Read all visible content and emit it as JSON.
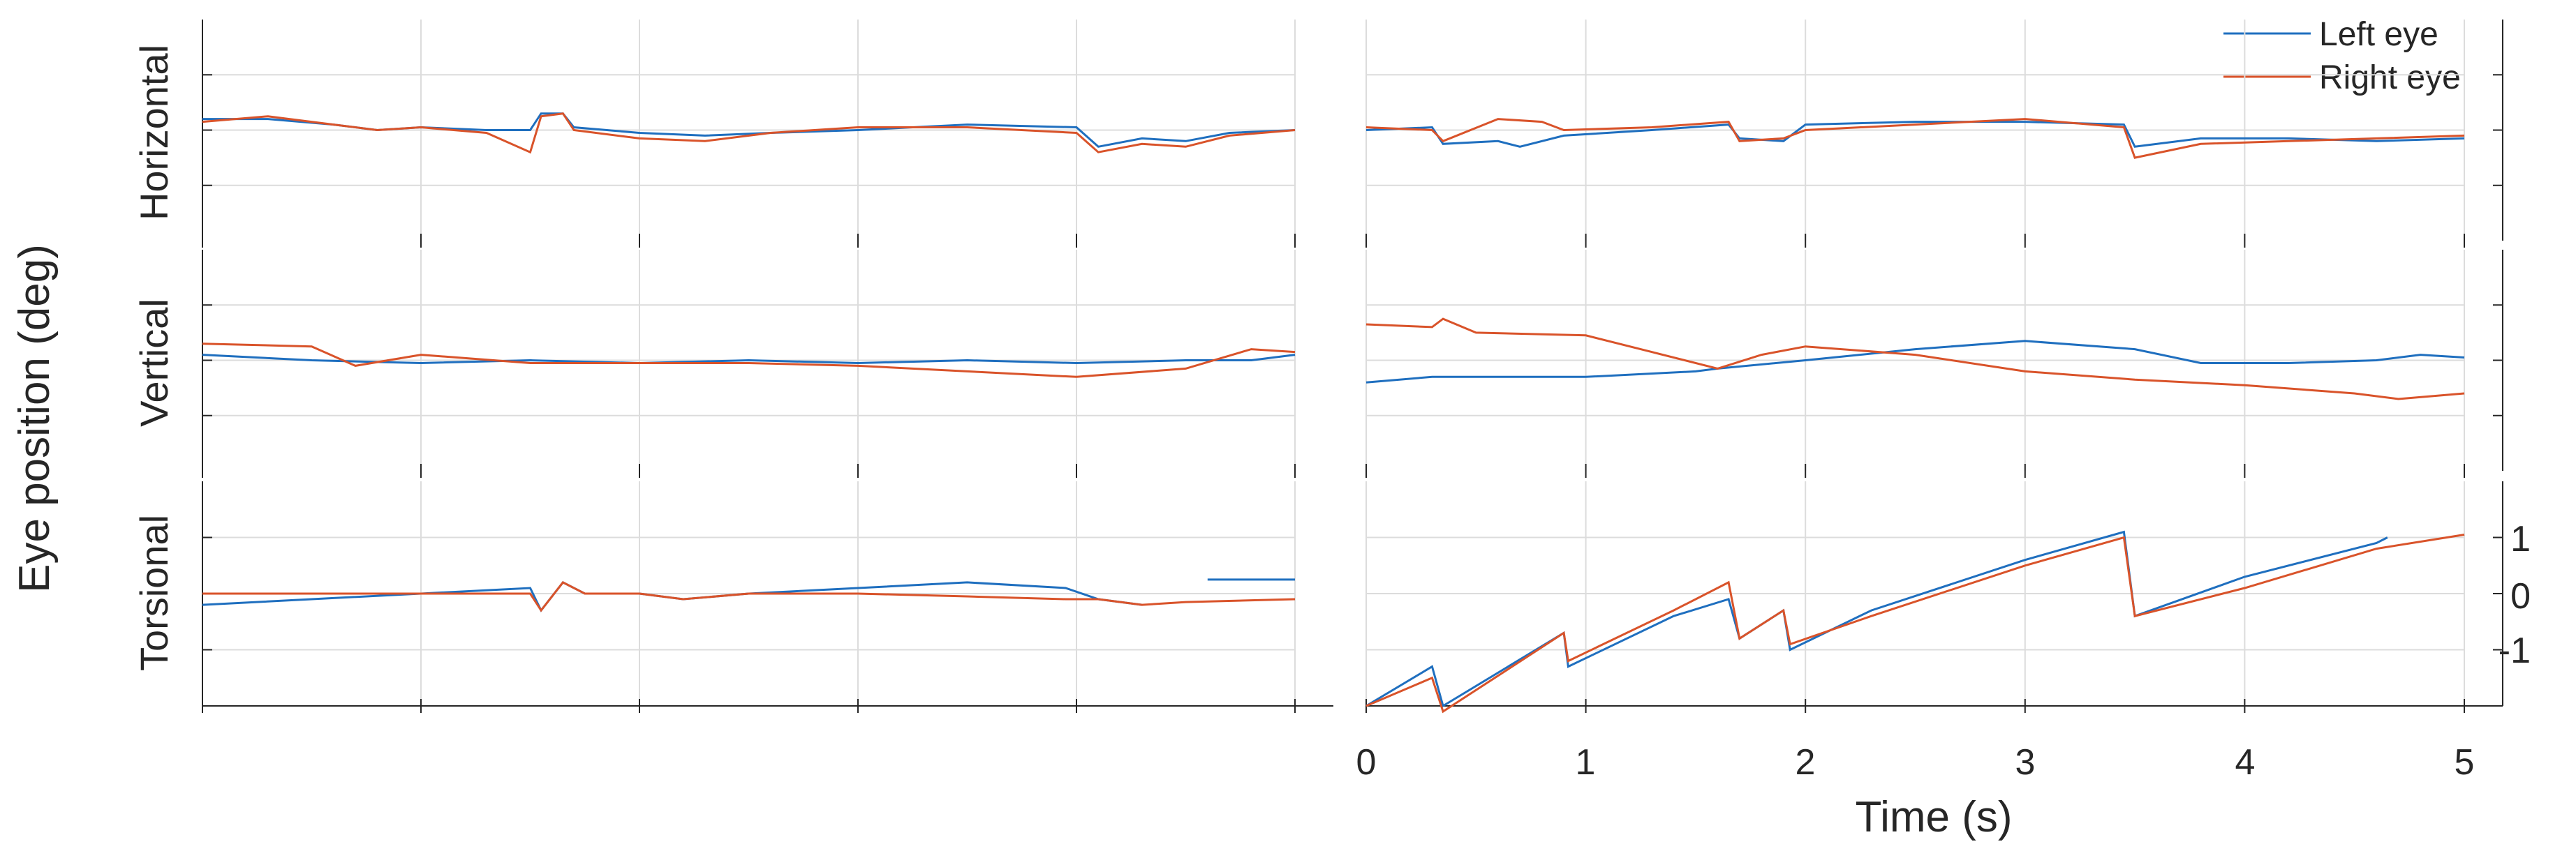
{
  "chart_data": {
    "type": "line",
    "ylabel": "Eye position (deg)",
    "xlabel": "Time (s)",
    "row_labels": [
      "Horizontal",
      "Vertical",
      "Torsional"
    ],
    "legend": [
      "Left eye",
      "Right eye"
    ],
    "legend_position": "top-right",
    "colors": {
      "left": "#1f6fbf",
      "right": "#d9532a",
      "grid": "#dcdcdc",
      "axis": "#262626"
    },
    "grid": true,
    "xlim": [
      0,
      5
    ],
    "xticks": [
      0,
      1,
      2,
      3,
      4,
      5
    ],
    "ylim": [
      -2,
      2
    ],
    "yticks_right_bottom": [
      1,
      0,
      -1
    ],
    "panels": {
      "left_horizontal": {
        "left": [
          [
            0,
            0.2
          ],
          [
            0.3,
            0.2
          ],
          [
            0.6,
            0.1
          ],
          [
            0.8,
            0
          ],
          [
            1.0,
            0.05
          ],
          [
            1.3,
            0
          ],
          [
            1.5,
            0
          ],
          [
            1.55,
            0.3
          ],
          [
            1.65,
            0.3
          ],
          [
            1.7,
            0.05
          ],
          [
            2.0,
            -0.05
          ],
          [
            2.3,
            -0.1
          ],
          [
            2.6,
            -0.05
          ],
          [
            3.0,
            0
          ],
          [
            3.5,
            0.1
          ],
          [
            4.0,
            0.05
          ],
          [
            4.1,
            -0.3
          ],
          [
            4.3,
            -0.15
          ],
          [
            4.5,
            -0.2
          ],
          [
            4.7,
            -0.05
          ],
          [
            5.0,
            0
          ]
        ],
        "right": [
          [
            0,
            0.15
          ],
          [
            0.3,
            0.25
          ],
          [
            0.6,
            0.1
          ],
          [
            0.8,
            0
          ],
          [
            1.0,
            0.05
          ],
          [
            1.3,
            -0.05
          ],
          [
            1.5,
            -0.4
          ],
          [
            1.55,
            0.25
          ],
          [
            1.65,
            0.3
          ],
          [
            1.7,
            0
          ],
          [
            2.0,
            -0.15
          ],
          [
            2.3,
            -0.2
          ],
          [
            2.6,
            -0.05
          ],
          [
            3.0,
            0.05
          ],
          [
            3.5,
            0.05
          ],
          [
            4.0,
            -0.05
          ],
          [
            4.1,
            -0.4
          ],
          [
            4.3,
            -0.25
          ],
          [
            4.5,
            -0.3
          ],
          [
            4.7,
            -0.1
          ],
          [
            5.0,
            0
          ]
        ]
      },
      "right_horizontal": {
        "left": [
          [
            0,
            0
          ],
          [
            0.3,
            0.05
          ],
          [
            0.35,
            -0.25
          ],
          [
            0.6,
            -0.2
          ],
          [
            0.7,
            -0.3
          ],
          [
            0.9,
            -0.1
          ],
          [
            1.3,
            0
          ],
          [
            1.65,
            0.1
          ],
          [
            1.7,
            -0.15
          ],
          [
            1.9,
            -0.2
          ],
          [
            2.0,
            0.1
          ],
          [
            2.5,
            0.15
          ],
          [
            3.0,
            0.15
          ],
          [
            3.45,
            0.1
          ],
          [
            3.5,
            -0.3
          ],
          [
            3.8,
            -0.15
          ],
          [
            4.2,
            -0.15
          ],
          [
            4.6,
            -0.2
          ],
          [
            5.0,
            -0.15
          ]
        ],
        "right": [
          [
            0,
            0.05
          ],
          [
            0.3,
            0
          ],
          [
            0.35,
            -0.2
          ],
          [
            0.6,
            0.2
          ],
          [
            0.8,
            0.15
          ],
          [
            0.9,
            0
          ],
          [
            1.3,
            0.05
          ],
          [
            1.65,
            0.15
          ],
          [
            1.7,
            -0.2
          ],
          [
            1.9,
            -0.15
          ],
          [
            2.0,
            0
          ],
          [
            2.5,
            0.1
          ],
          [
            3.0,
            0.2
          ],
          [
            3.45,
            0.05
          ],
          [
            3.5,
            -0.5
          ],
          [
            3.8,
            -0.25
          ],
          [
            4.2,
            -0.2
          ],
          [
            4.6,
            -0.15
          ],
          [
            5.0,
            -0.1
          ]
        ]
      },
      "left_vertical": {
        "left": [
          [
            0,
            0.1
          ],
          [
            0.5,
            0
          ],
          [
            1.0,
            -0.05
          ],
          [
            1.5,
            0
          ],
          [
            2.0,
            -0.05
          ],
          [
            2.5,
            0
          ],
          [
            3.0,
            -0.05
          ],
          [
            3.5,
            0
          ],
          [
            4.0,
            -0.05
          ],
          [
            4.5,
            0
          ],
          [
            4.8,
            0
          ],
          [
            5.0,
            0.1
          ]
        ],
        "right": [
          [
            0,
            0.3
          ],
          [
            0.5,
            0.25
          ],
          [
            0.7,
            -0.1
          ],
          [
            1.0,
            0.1
          ],
          [
            1.5,
            -0.05
          ],
          [
            2.0,
            -0.05
          ],
          [
            2.5,
            -0.05
          ],
          [
            3.0,
            -0.1
          ],
          [
            3.5,
            -0.2
          ],
          [
            4.0,
            -0.3
          ],
          [
            4.5,
            -0.15
          ],
          [
            4.8,
            0.2
          ],
          [
            5.0,
            0.15
          ]
        ]
      },
      "right_vertical": {
        "left": [
          [
            0,
            -0.4
          ],
          [
            0.3,
            -0.3
          ],
          [
            1.0,
            -0.3
          ],
          [
            1.5,
            -0.2
          ],
          [
            1.6,
            -0.15
          ],
          [
            2.0,
            0
          ],
          [
            2.5,
            0.2
          ],
          [
            3.0,
            0.35
          ],
          [
            3.5,
            0.2
          ],
          [
            3.8,
            -0.05
          ],
          [
            4.2,
            -0.05
          ],
          [
            4.6,
            0
          ],
          [
            4.8,
            0.1
          ],
          [
            5.0,
            0.05
          ]
        ],
        "right": [
          [
            0,
            0.65
          ],
          [
            0.3,
            0.6
          ],
          [
            0.35,
            0.75
          ],
          [
            0.5,
            0.5
          ],
          [
            1.0,
            0.45
          ],
          [
            1.3,
            0.15
          ],
          [
            1.6,
            -0.15
          ],
          [
            1.8,
            0.1
          ],
          [
            2.0,
            0.25
          ],
          [
            2.5,
            0.1
          ],
          [
            3.0,
            -0.2
          ],
          [
            3.5,
            -0.35
          ],
          [
            4.0,
            -0.45
          ],
          [
            4.5,
            -0.6
          ],
          [
            4.7,
            -0.7
          ],
          [
            5.0,
            -0.6
          ]
        ]
      },
      "left_torsional": {
        "left": [
          [
            0,
            -0.2
          ],
          [
            0.5,
            -0.1
          ],
          [
            1.0,
            0
          ],
          [
            1.5,
            0.1
          ],
          [
            1.55,
            -0.3
          ],
          [
            1.65,
            0.2
          ],
          [
            1.75,
            0
          ],
          [
            2.0,
            0
          ],
          [
            2.2,
            -0.1
          ],
          [
            2.5,
            0
          ],
          [
            3.0,
            0.1
          ],
          [
            3.5,
            0.2
          ],
          [
            3.95,
            0.1
          ],
          [
            4.1,
            -0.1
          ],
          [
            4.3,
            -0.2
          ],
          [
            4.45,
            null
          ],
          [
            4.6,
            0.25
          ],
          [
            5.0,
            0.25
          ]
        ],
        "right": [
          [
            0,
            0
          ],
          [
            0.5,
            0
          ],
          [
            1.0,
            0
          ],
          [
            1.5,
            0
          ],
          [
            1.55,
            -0.3
          ],
          [
            1.65,
            0.2
          ],
          [
            1.75,
            0
          ],
          [
            2.0,
            0
          ],
          [
            2.2,
            -0.1
          ],
          [
            2.5,
            0
          ],
          [
            3.0,
            0
          ],
          [
            3.5,
            -0.05
          ],
          [
            3.95,
            -0.1
          ],
          [
            4.1,
            -0.1
          ],
          [
            4.3,
            -0.2
          ],
          [
            4.5,
            -0.15
          ],
          [
            5.0,
            -0.1
          ]
        ]
      },
      "right_torsional": {
        "left": [
          [
            0,
            -2
          ],
          [
            0.3,
            -1.3
          ],
          [
            0.35,
            -2
          ],
          [
            0.9,
            -0.7
          ],
          [
            0.92,
            -1.3
          ],
          [
            1.4,
            -0.4
          ],
          [
            1.65,
            -0.1
          ],
          [
            1.7,
            -0.8
          ],
          [
            1.9,
            -0.3
          ],
          [
            1.93,
            -1.0
          ],
          [
            2.3,
            -0.3
          ],
          [
            3.0,
            0.6
          ],
          [
            3.45,
            1.1
          ],
          [
            3.5,
            -0.4
          ],
          [
            4.0,
            0.3
          ],
          [
            4.6,
            0.9
          ],
          [
            4.65,
            1.0
          ]
        ],
        "right": [
          [
            0,
            -2
          ],
          [
            0.3,
            -1.5
          ],
          [
            0.35,
            -2.1
          ],
          [
            0.9,
            -0.7
          ],
          [
            0.92,
            -1.2
          ],
          [
            1.4,
            -0.3
          ],
          [
            1.65,
            0.2
          ],
          [
            1.7,
            -0.8
          ],
          [
            1.9,
            -0.3
          ],
          [
            1.93,
            -0.9
          ],
          [
            2.3,
            -0.4
          ],
          [
            3.0,
            0.5
          ],
          [
            3.45,
            1.0
          ],
          [
            3.5,
            -0.4
          ],
          [
            4.0,
            0.1
          ],
          [
            4.6,
            0.8
          ],
          [
            5.0,
            1.05
          ]
        ]
      }
    }
  }
}
